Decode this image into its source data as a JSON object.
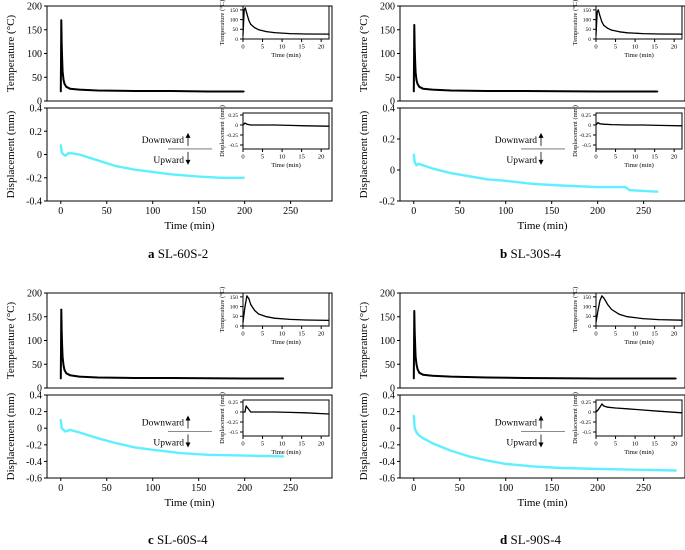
{
  "colors": {
    "temperature": "#000000",
    "displacement": "#5ff0ff",
    "axis": "#000000"
  },
  "labels": {
    "temperature_ylabel": "Temperature (°C)",
    "displacement_ylabel": "Displacement (mm)",
    "time_xlabel": "Time (min)",
    "inset_temp_ylabel": "Temperature (°C)",
    "inset_disp_ylabel": "Displacement (mm)",
    "downward": "Downward",
    "upward": "Upward"
  },
  "captions": [
    {
      "letter": "a",
      "text": "SL-60S-2"
    },
    {
      "letter": "b",
      "text": "SL-30S-4"
    },
    {
      "letter": "c",
      "text": "SL-60S-4"
    },
    {
      "letter": "d",
      "text": "SL-90S-4"
    }
  ],
  "chart_data": [
    {
      "type": "line",
      "panel": "a",
      "caption": "SL-60S-2",
      "temperature": {
        "ylabel": "Temperature (°C)",
        "xlim": [
          -15,
          295
        ],
        "ylim": [
          0,
          200
        ],
        "yticks": [
          0,
          50,
          100,
          150,
          200
        ],
        "x": [
          0,
          0.5,
          1,
          1.5,
          2,
          3,
          4,
          6,
          10,
          20,
          40,
          80,
          120,
          160,
          199
        ],
        "y": [
          20,
          170,
          120,
          85,
          62,
          45,
          36,
          30,
          26,
          24,
          22,
          21,
          21,
          20,
          20
        ]
      },
      "temperature_inset": {
        "xlabel": "Time (min)",
        "ylabel": "Temperature (°C)",
        "xlim": [
          0,
          22
        ],
        "ylim": [
          0,
          170
        ],
        "xticks": [
          0,
          5,
          10,
          15,
          20
        ],
        "yticks": [
          0,
          50,
          100,
          150
        ],
        "x": [
          0,
          0.3,
          0.6,
          1,
          1.5,
          2,
          3,
          4,
          6,
          8,
          12,
          16,
          22
        ],
        "y": [
          20,
          150,
          160,
          130,
          95,
          75,
          58,
          48,
          38,
          33,
          28,
          26,
          25
        ]
      },
      "displacement": {
        "xlabel": "Time (min)",
        "ylabel": "Displacement (mm)",
        "xlim": [
          -15,
          295
        ],
        "ylim": [
          -0.4,
          0.4
        ],
        "xticks": [
          0,
          50,
          100,
          150,
          200,
          250
        ],
        "yticks": [
          -0.4,
          -0.2,
          0.0,
          0.2,
          0.4
        ],
        "x": [
          0,
          1,
          3,
          5,
          8,
          12,
          20,
          40,
          60,
          80,
          100,
          120,
          150,
          175,
          199
        ],
        "y": [
          0.08,
          0.02,
          0.0,
          -0.01,
          0.01,
          0.01,
          0.0,
          -0.05,
          -0.1,
          -0.13,
          -0.15,
          -0.17,
          -0.19,
          -0.2,
          -0.2
        ]
      },
      "displacement_inset": {
        "xlabel": "Time (min)",
        "ylabel": "Displacement (mm)",
        "xlim": [
          0,
          22
        ],
        "ylim": [
          -0.6,
          0.3
        ],
        "xticks": [
          0,
          5,
          10,
          15,
          20
        ],
        "yticks": [
          -0.5,
          -0.25,
          0.0,
          0.25
        ],
        "x": [
          0,
          0.5,
          1,
          2,
          4,
          8,
          12,
          16,
          22
        ],
        "y": [
          0.0,
          0.05,
          0.02,
          0.0,
          0.0,
          0.0,
          -0.01,
          -0.02,
          -0.03
        ]
      }
    },
    {
      "type": "line",
      "panel": "b",
      "caption": "SL-30S-4",
      "temperature": {
        "ylabel": "Temperature (°C)",
        "xlim": [
          -15,
          295
        ],
        "ylim": [
          0,
          200
        ],
        "yticks": [
          0,
          50,
          100,
          150,
          200
        ],
        "x": [
          0,
          0.5,
          1,
          1.5,
          2,
          3,
          4,
          6,
          10,
          20,
          40,
          80,
          120,
          200,
          265
        ],
        "y": [
          20,
          160,
          112,
          80,
          60,
          44,
          36,
          30,
          26,
          24,
          22,
          21,
          21,
          20,
          20
        ]
      },
      "temperature_inset": {
        "xlabel": "Time (min)",
        "ylabel": "Temperature (°C)",
        "xlim": [
          0,
          22
        ],
        "ylim": [
          0,
          170
        ],
        "xticks": [
          0,
          5,
          10,
          15,
          20
        ],
        "yticks": [
          0,
          50,
          100,
          150
        ],
        "x": [
          0,
          0.3,
          0.6,
          1,
          1.5,
          2,
          3,
          4,
          6,
          8,
          12,
          16,
          22
        ],
        "y": [
          20,
          140,
          150,
          120,
          88,
          70,
          55,
          46,
          37,
          32,
          28,
          26,
          25
        ]
      },
      "displacement": {
        "xlabel": "Time (min)",
        "ylabel": "Displacement (mm)",
        "xlim": [
          -15,
          295
        ],
        "ylim": [
          -0.2,
          0.4
        ],
        "xticks": [
          0,
          50,
          100,
          150,
          200,
          250
        ],
        "yticks": [
          -0.2,
          0.0,
          0.2,
          0.4
        ],
        "x": [
          0,
          1,
          3,
          5,
          10,
          20,
          40,
          60,
          80,
          100,
          130,
          160,
          200,
          230,
          235,
          265
        ],
        "y": [
          0.1,
          0.05,
          0.03,
          0.04,
          0.03,
          0.01,
          -0.02,
          -0.04,
          -0.06,
          -0.07,
          -0.09,
          -0.1,
          -0.11,
          -0.11,
          -0.13,
          -0.14
        ]
      },
      "displacement_inset": {
        "xlabel": "Time (min)",
        "ylabel": "Displacement (mm)",
        "xlim": [
          0,
          22
        ],
        "ylim": [
          -0.6,
          0.3
        ],
        "xticks": [
          0,
          5,
          10,
          15,
          20
        ],
        "yticks": [
          -0.5,
          -0.25,
          0.0,
          0.25
        ],
        "x": [
          0,
          0.5,
          1,
          2,
          4,
          8,
          12,
          16,
          22
        ],
        "y": [
          0.0,
          0.06,
          0.03,
          0.02,
          0.01,
          0.0,
          0.0,
          -0.01,
          -0.02
        ]
      }
    },
    {
      "type": "line",
      "panel": "c",
      "caption": "SL-60S-4",
      "temperature": {
        "ylabel": "Temperature (°C)",
        "xlim": [
          -15,
          295
        ],
        "ylim": [
          0,
          200
        ],
        "yticks": [
          0,
          50,
          100,
          150,
          200
        ],
        "x": [
          0,
          0.5,
          1,
          1.5,
          2,
          3,
          4,
          6,
          10,
          20,
          40,
          80,
          120,
          200,
          242
        ],
        "y": [
          20,
          165,
          118,
          85,
          65,
          48,
          38,
          31,
          27,
          24,
          22,
          21,
          21,
          20,
          20
        ]
      },
      "temperature_inset": {
        "xlabel": "Time (min)",
        "ylabel": "Temperature (°C)",
        "xlim": [
          0,
          22
        ],
        "ylim": [
          0,
          170
        ],
        "xticks": [
          0,
          5,
          10,
          15,
          20
        ],
        "yticks": [
          0,
          50,
          100,
          150
        ],
        "x": [
          0,
          0.5,
          1,
          1.5,
          2,
          3,
          4,
          6,
          8,
          12,
          16,
          22
        ],
        "y": [
          20,
          100,
          155,
          140,
          110,
          80,
          62,
          48,
          40,
          34,
          31,
          29
        ]
      },
      "displacement": {
        "xlabel": "Time (min)",
        "ylabel": "Displacement (mm)",
        "xlim": [
          -15,
          295
        ],
        "ylim": [
          -0.6,
          0.4
        ],
        "xticks": [
          0,
          50,
          100,
          150,
          200,
          250
        ],
        "yticks": [
          -0.6,
          -0.4,
          -0.2,
          0.0,
          0.2,
          0.4
        ],
        "x": [
          0,
          1,
          3,
          5,
          10,
          20,
          40,
          60,
          80,
          100,
          130,
          160,
          200,
          242
        ],
        "y": [
          0.1,
          0.0,
          -0.02,
          -0.04,
          -0.02,
          -0.05,
          -0.12,
          -0.18,
          -0.23,
          -0.26,
          -0.3,
          -0.32,
          -0.33,
          -0.34
        ]
      },
      "displacement_inset": {
        "xlabel": "Time (min)",
        "ylabel": "Displacement (mm)",
        "xlim": [
          0,
          22
        ],
        "ylim": [
          -0.6,
          0.3
        ],
        "xticks": [
          0,
          5,
          10,
          15,
          20
        ],
        "yticks": [
          -0.5,
          -0.25,
          0.0,
          0.25
        ],
        "x": [
          0,
          0.5,
          0.8,
          1.2,
          2,
          4,
          8,
          12,
          16,
          22
        ],
        "y": [
          0.0,
          0.0,
          0.15,
          0.1,
          0.0,
          0.0,
          0.0,
          -0.01,
          -0.02,
          -0.05
        ]
      }
    },
    {
      "type": "line",
      "panel": "d",
      "caption": "SL-90S-4",
      "temperature": {
        "ylabel": "Temperature (°C)",
        "xlim": [
          -15,
          295
        ],
        "ylim": [
          0,
          200
        ],
        "yticks": [
          0,
          50,
          100,
          150,
          200
        ],
        "x": [
          0,
          0.5,
          1,
          1.5,
          2,
          3,
          4,
          6,
          10,
          20,
          40,
          80,
          120,
          200,
          285
        ],
        "y": [
          20,
          162,
          118,
          88,
          66,
          50,
          40,
          32,
          28,
          26,
          24,
          22,
          21,
          20,
          20
        ]
      },
      "temperature_inset": {
        "xlabel": "Time (min)",
        "ylabel": "Temperature (°C)",
        "xlim": [
          0,
          22
        ],
        "ylim": [
          0,
          170
        ],
        "xticks": [
          0,
          5,
          10,
          15,
          20
        ],
        "yticks": [
          0,
          50,
          100,
          150
        ],
        "x": [
          0,
          0.5,
          1,
          1.5,
          2,
          3,
          4,
          6,
          8,
          12,
          16,
          22
        ],
        "y": [
          20,
          80,
          130,
          155,
          145,
          110,
          85,
          60,
          48,
          38,
          33,
          30
        ]
      },
      "displacement": {
        "xlabel": "Time (min)",
        "ylabel": "Displacement (mm)",
        "xlim": [
          -15,
          295
        ],
        "ylim": [
          -0.6,
          0.4
        ],
        "xticks": [
          0,
          50,
          100,
          150,
          200,
          250
        ],
        "yticks": [
          -0.6,
          -0.4,
          -0.2,
          0.0,
          0.2,
          0.4
        ],
        "x": [
          0,
          1,
          3,
          5,
          10,
          20,
          40,
          60,
          80,
          100,
          130,
          160,
          200,
          240,
          285
        ],
        "y": [
          0.15,
          0.0,
          -0.05,
          -0.08,
          -0.12,
          -0.18,
          -0.27,
          -0.34,
          -0.39,
          -0.43,
          -0.46,
          -0.48,
          -0.49,
          -0.5,
          -0.51
        ]
      },
      "displacement_inset": {
        "xlabel": "Time (min)",
        "ylabel": "Displacement (mm)",
        "xlim": [
          0,
          22
        ],
        "ylim": [
          -0.6,
          0.3
        ],
        "xticks": [
          0,
          5,
          10,
          15,
          20
        ],
        "yticks": [
          -0.5,
          -0.25,
          0.0,
          0.25
        ],
        "x": [
          0,
          0.5,
          1,
          1.5,
          2,
          3,
          5,
          8,
          12,
          16,
          22
        ],
        "y": [
          0.0,
          0.05,
          0.12,
          0.2,
          0.15,
          0.12,
          0.1,
          0.08,
          0.05,
          0.02,
          -0.02
        ]
      }
    }
  ]
}
